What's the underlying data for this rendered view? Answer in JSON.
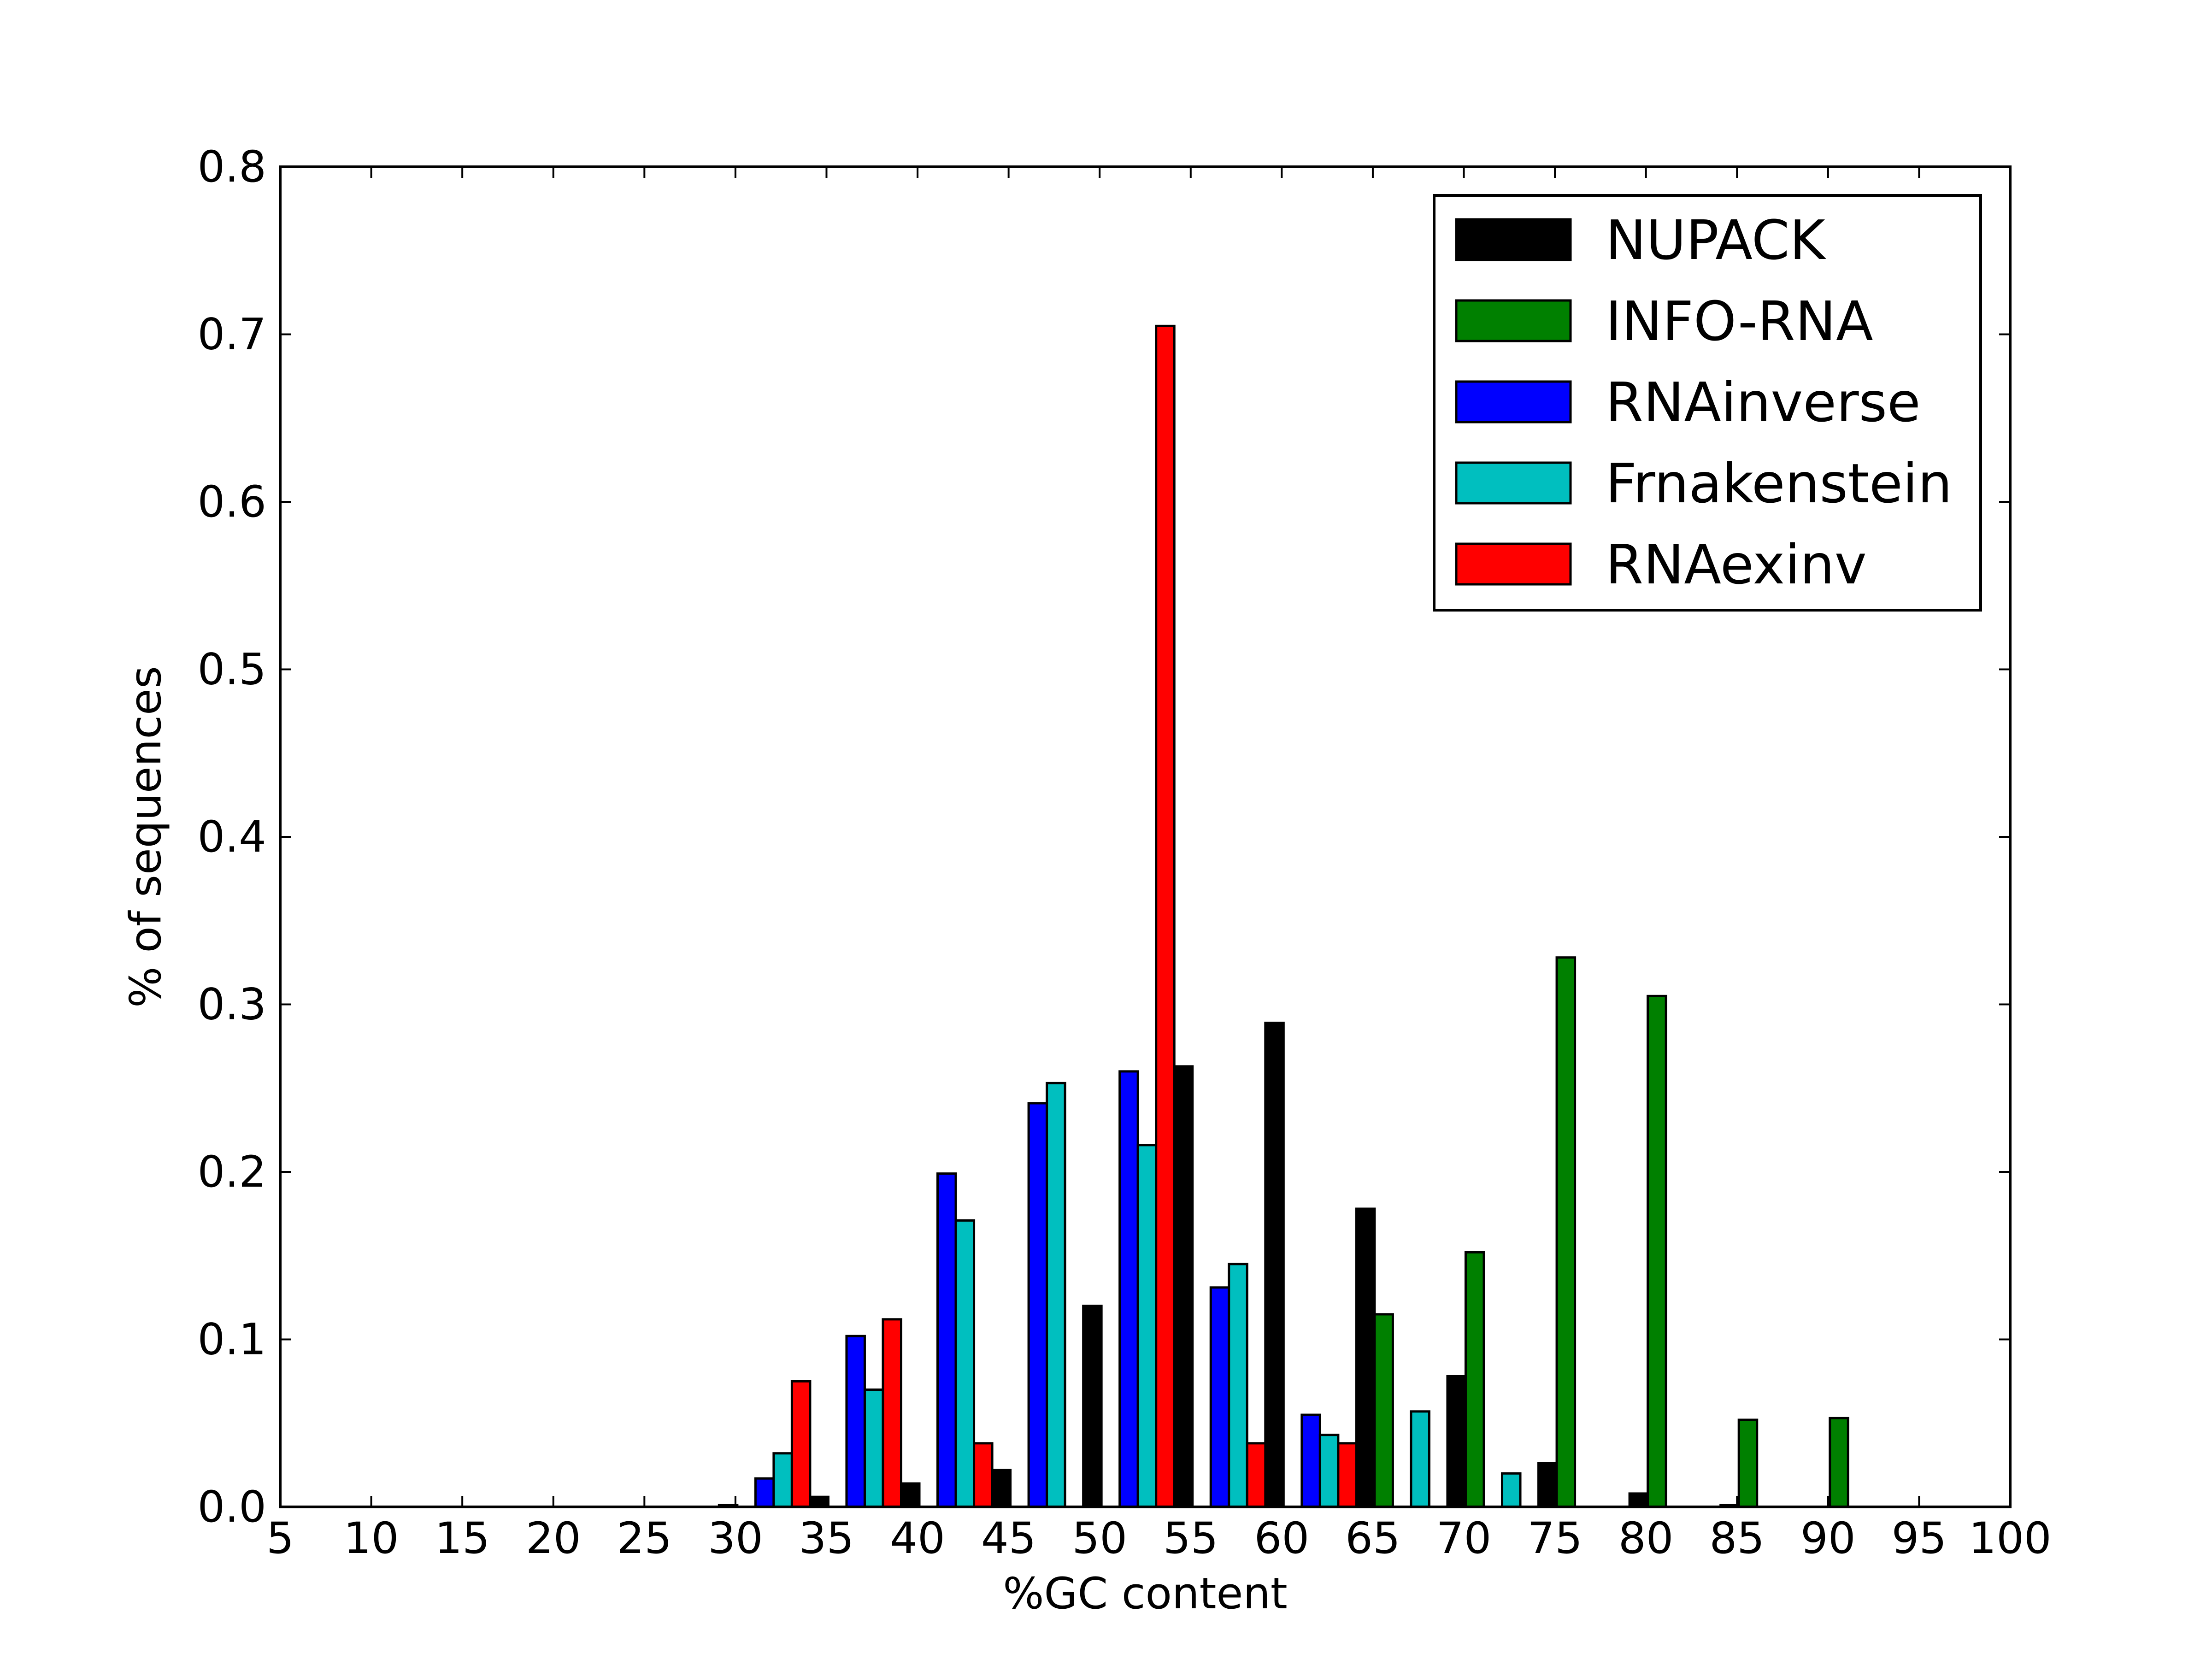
{
  "chart_data": {
    "type": "bar",
    "xlabel": "%GC content",
    "ylabel": "% of sequences",
    "xlim": [
      5,
      100
    ],
    "ylim": [
      0,
      0.8
    ],
    "xticks": [
      "5",
      "10",
      "15",
      "20",
      "25",
      "30",
      "35",
      "40",
      "45",
      "50",
      "55",
      "60",
      "65",
      "70",
      "75",
      "80",
      "85",
      "90",
      "95",
      "100"
    ],
    "yticks": [
      "0.0",
      "0.1",
      "0.2",
      "0.3",
      "0.4",
      "0.5",
      "0.6",
      "0.7",
      "0.8"
    ],
    "grid": false,
    "legend_position": "top-right",
    "bin_width": 5,
    "series": [
      {
        "name": "NUPACK",
        "color": "#000000",
        "values": [
          [
            29.6,
            0.001
          ],
          [
            34.6,
            0.006
          ],
          [
            39.6,
            0.014
          ],
          [
            44.6,
            0.022
          ],
          [
            49.6,
            0.12
          ],
          [
            54.6,
            0.263
          ],
          [
            59.6,
            0.289
          ],
          [
            64.6,
            0.178
          ],
          [
            69.6,
            0.078
          ],
          [
            74.6,
            0.026
          ],
          [
            79.6,
            0.008
          ],
          [
            84.6,
            0.001
          ]
        ]
      },
      {
        "name": "INFO-RNA",
        "color": "#008000",
        "values": [
          [
            65.6,
            0.115
          ],
          [
            70.6,
            0.152
          ],
          [
            75.6,
            0.328
          ],
          [
            80.6,
            0.305
          ],
          [
            85.6,
            0.052
          ],
          [
            90.6,
            0.053
          ]
        ]
      },
      {
        "name": "RNAinverse",
        "color": "#0000ff",
        "values": [
          [
            31.6,
            0.017
          ],
          [
            36.6,
            0.102
          ],
          [
            41.6,
            0.199
          ],
          [
            46.6,
            0.241
          ],
          [
            51.6,
            0.26
          ],
          [
            56.6,
            0.131
          ],
          [
            61.6,
            0.055
          ]
        ]
      },
      {
        "name": "Frnakenstein",
        "color": "#00bfbf",
        "values": [
          [
            32.6,
            0.032
          ],
          [
            37.6,
            0.07
          ],
          [
            42.6,
            0.171
          ],
          [
            47.6,
            0.253
          ],
          [
            52.6,
            0.216
          ],
          [
            57.6,
            0.145
          ],
          [
            62.6,
            0.043
          ],
          [
            67.6,
            0.057
          ],
          [
            72.6,
            0.02
          ]
        ]
      },
      {
        "name": "RNAexinv",
        "color": "#ff0000",
        "values": [
          [
            33.6,
            0.075
          ],
          [
            38.6,
            0.112
          ],
          [
            43.6,
            0.038
          ],
          [
            53.6,
            0.705
          ],
          [
            58.6,
            0.038
          ],
          [
            63.6,
            0.038
          ]
        ]
      }
    ]
  }
}
